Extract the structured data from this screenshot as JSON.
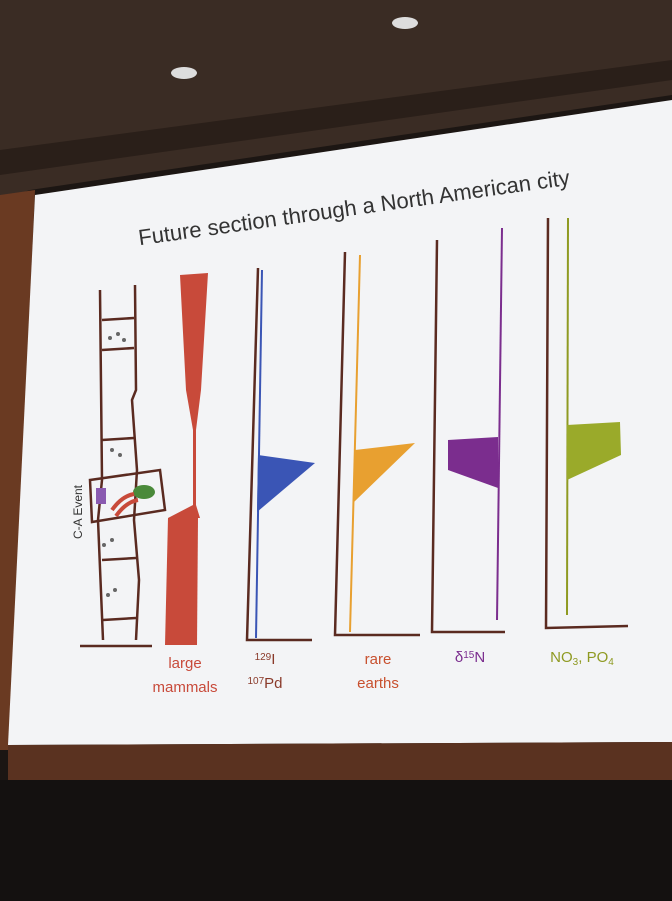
{
  "title": "Future section through a North American city",
  "event_label": "C-A Event",
  "columns": [
    {
      "color": "#c84a3a",
      "lines": [
        [
          {
            "text": "large",
            "style": "normal"
          }
        ],
        [
          {
            "text": "mammals",
            "style": "normal"
          }
        ]
      ]
    },
    {
      "color": "#8a3a2a",
      "lines": [
        [
          {
            "text": "129",
            "style": "sup"
          },
          {
            "text": "I",
            "style": "normal"
          }
        ],
        [
          {
            "text": "107",
            "style": "sup"
          },
          {
            "text": "Pd",
            "style": "normal"
          }
        ]
      ]
    },
    {
      "color": "#c8502e",
      "lines": [
        [
          {
            "text": "rare",
            "style": "normal"
          }
        ],
        [
          {
            "text": "earths",
            "style": "normal"
          }
        ]
      ]
    },
    {
      "color": "#7b2d8e",
      "lines": [
        [
          {
            "text": "δ",
            "style": "normal"
          },
          {
            "text": "15",
            "style": "sup"
          },
          {
            "text": "N",
            "style": "normal"
          }
        ]
      ]
    },
    {
      "color": "#8f9a22",
      "lines": [
        [
          {
            "text": "NO",
            "style": "normal"
          },
          {
            "text": "3",
            "style": "sub"
          },
          {
            "text": ",",
            "style": "normal"
          },
          {
            "text": " PO",
            "style": "normal"
          },
          {
            "text": "4",
            "style": "sub"
          }
        ]
      ]
    }
  ]
}
